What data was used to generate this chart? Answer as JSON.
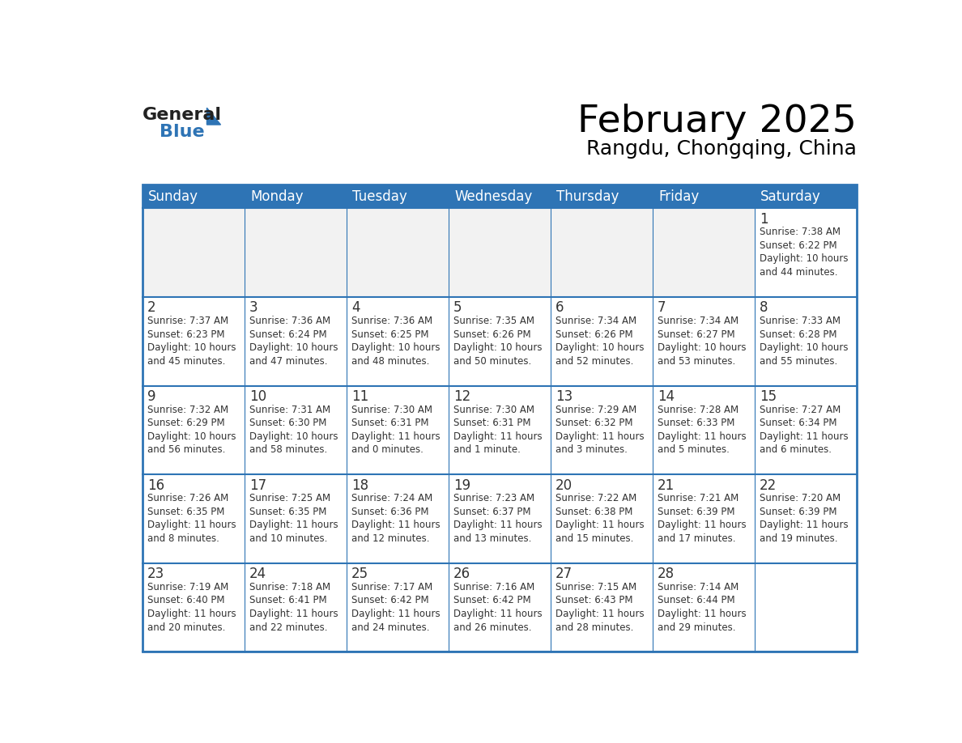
{
  "title": "February 2025",
  "subtitle": "Rangdu, Chongqing, China",
  "header_bg": "#2E74B5",
  "header_text_color": "#FFFFFF",
  "cell_bg_light": "#F2F2F2",
  "cell_bg_white": "#FFFFFF",
  "border_color": "#2E74B5",
  "text_color": "#333333",
  "day_headers": [
    "Sunday",
    "Monday",
    "Tuesday",
    "Wednesday",
    "Thursday",
    "Friday",
    "Saturday"
  ],
  "weeks": [
    [
      {
        "day": "",
        "info": ""
      },
      {
        "day": "",
        "info": ""
      },
      {
        "day": "",
        "info": ""
      },
      {
        "day": "",
        "info": ""
      },
      {
        "day": "",
        "info": ""
      },
      {
        "day": "",
        "info": ""
      },
      {
        "day": "1",
        "info": "Sunrise: 7:38 AM\nSunset: 6:22 PM\nDaylight: 10 hours\nand 44 minutes."
      }
    ],
    [
      {
        "day": "2",
        "info": "Sunrise: 7:37 AM\nSunset: 6:23 PM\nDaylight: 10 hours\nand 45 minutes."
      },
      {
        "day": "3",
        "info": "Sunrise: 7:36 AM\nSunset: 6:24 PM\nDaylight: 10 hours\nand 47 minutes."
      },
      {
        "day": "4",
        "info": "Sunrise: 7:36 AM\nSunset: 6:25 PM\nDaylight: 10 hours\nand 48 minutes."
      },
      {
        "day": "5",
        "info": "Sunrise: 7:35 AM\nSunset: 6:26 PM\nDaylight: 10 hours\nand 50 minutes."
      },
      {
        "day": "6",
        "info": "Sunrise: 7:34 AM\nSunset: 6:26 PM\nDaylight: 10 hours\nand 52 minutes."
      },
      {
        "day": "7",
        "info": "Sunrise: 7:34 AM\nSunset: 6:27 PM\nDaylight: 10 hours\nand 53 minutes."
      },
      {
        "day": "8",
        "info": "Sunrise: 7:33 AM\nSunset: 6:28 PM\nDaylight: 10 hours\nand 55 minutes."
      }
    ],
    [
      {
        "day": "9",
        "info": "Sunrise: 7:32 AM\nSunset: 6:29 PM\nDaylight: 10 hours\nand 56 minutes."
      },
      {
        "day": "10",
        "info": "Sunrise: 7:31 AM\nSunset: 6:30 PM\nDaylight: 10 hours\nand 58 minutes."
      },
      {
        "day": "11",
        "info": "Sunrise: 7:30 AM\nSunset: 6:31 PM\nDaylight: 11 hours\nand 0 minutes."
      },
      {
        "day": "12",
        "info": "Sunrise: 7:30 AM\nSunset: 6:31 PM\nDaylight: 11 hours\nand 1 minute."
      },
      {
        "day": "13",
        "info": "Sunrise: 7:29 AM\nSunset: 6:32 PM\nDaylight: 11 hours\nand 3 minutes."
      },
      {
        "day": "14",
        "info": "Sunrise: 7:28 AM\nSunset: 6:33 PM\nDaylight: 11 hours\nand 5 minutes."
      },
      {
        "day": "15",
        "info": "Sunrise: 7:27 AM\nSunset: 6:34 PM\nDaylight: 11 hours\nand 6 minutes."
      }
    ],
    [
      {
        "day": "16",
        "info": "Sunrise: 7:26 AM\nSunset: 6:35 PM\nDaylight: 11 hours\nand 8 minutes."
      },
      {
        "day": "17",
        "info": "Sunrise: 7:25 AM\nSunset: 6:35 PM\nDaylight: 11 hours\nand 10 minutes."
      },
      {
        "day": "18",
        "info": "Sunrise: 7:24 AM\nSunset: 6:36 PM\nDaylight: 11 hours\nand 12 minutes."
      },
      {
        "day": "19",
        "info": "Sunrise: 7:23 AM\nSunset: 6:37 PM\nDaylight: 11 hours\nand 13 minutes."
      },
      {
        "day": "20",
        "info": "Sunrise: 7:22 AM\nSunset: 6:38 PM\nDaylight: 11 hours\nand 15 minutes."
      },
      {
        "day": "21",
        "info": "Sunrise: 7:21 AM\nSunset: 6:39 PM\nDaylight: 11 hours\nand 17 minutes."
      },
      {
        "day": "22",
        "info": "Sunrise: 7:20 AM\nSunset: 6:39 PM\nDaylight: 11 hours\nand 19 minutes."
      }
    ],
    [
      {
        "day": "23",
        "info": "Sunrise: 7:19 AM\nSunset: 6:40 PM\nDaylight: 11 hours\nand 20 minutes."
      },
      {
        "day": "24",
        "info": "Sunrise: 7:18 AM\nSunset: 6:41 PM\nDaylight: 11 hours\nand 22 minutes."
      },
      {
        "day": "25",
        "info": "Sunrise: 7:17 AM\nSunset: 6:42 PM\nDaylight: 11 hours\nand 24 minutes."
      },
      {
        "day": "26",
        "info": "Sunrise: 7:16 AM\nSunset: 6:42 PM\nDaylight: 11 hours\nand 26 minutes."
      },
      {
        "day": "27",
        "info": "Sunrise: 7:15 AM\nSunset: 6:43 PM\nDaylight: 11 hours\nand 28 minutes."
      },
      {
        "day": "28",
        "info": "Sunrise: 7:14 AM\nSunset: 6:44 PM\nDaylight: 11 hours\nand 29 minutes."
      },
      {
        "day": "",
        "info": ""
      }
    ]
  ],
  "logo_color_general": "#222222",
  "logo_color_blue": "#2E74B5",
  "logo_triangle_color": "#2E74B5"
}
